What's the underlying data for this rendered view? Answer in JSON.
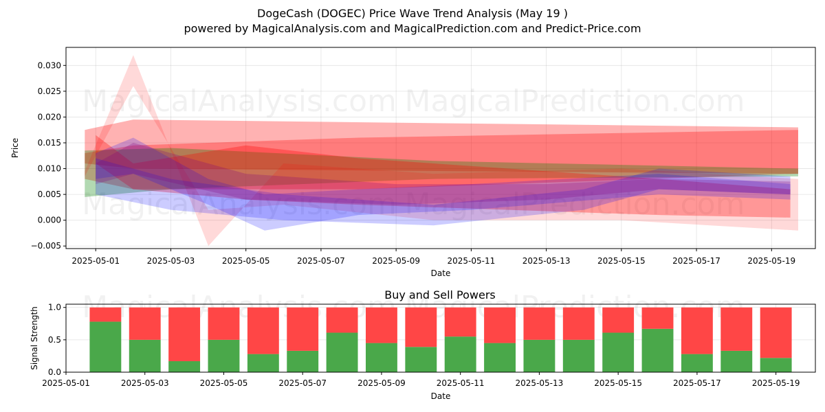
{
  "page": {
    "title": "DogeCash (DOGEC) Price Wave Trend Analysis (May 19 )",
    "subtitle": "powered by MagicalAnalysis.com and MagicalPrediction.com and Predict-Price.com",
    "watermarks": [
      "MagicalAnalysis.com",
      "MagicalPrediction.com"
    ]
  },
  "chart_data": [
    {
      "type": "area",
      "title": "",
      "xlabel": "Date",
      "ylabel": "Price",
      "xlim": [
        "2025-04-30T05:00",
        "2025-05-20T04:00"
      ],
      "ylim": [
        -0.0055,
        0.0335
      ],
      "x_ticks": [
        "2025-05-01",
        "2025-05-03",
        "2025-05-05",
        "2025-05-07",
        "2025-05-09",
        "2025-05-11",
        "2025-05-13",
        "2025-05-15",
        "2025-05-17",
        "2025-05-19"
      ],
      "y_ticks": [
        -0.005,
        0.0,
        0.005,
        0.01,
        0.015,
        0.02,
        0.025,
        0.03
      ],
      "y_tick_labels": [
        "−0.005",
        "0.000",
        "0.005",
        "0.010",
        "0.015",
        "0.020",
        "0.025",
        "0.030"
      ],
      "grid": true,
      "series": [
        {
          "color": "#ff0000",
          "opacity": 0.3,
          "points": [
            [
              "2025-04-30T17:00",
              0.0175,
              0.011
            ],
            [
              "2025-05-02",
              0.0195,
              0.01
            ],
            [
              "2025-05-19T17:00",
              0.018,
              0.009
            ]
          ]
        },
        {
          "color": "#ff0000",
          "opacity": 0.3,
          "points": [
            [
              "2025-04-30T17:00",
              0.013,
              0.008
            ],
            [
              "2025-05-02",
              0.0145,
              0.006
            ],
            [
              "2025-05-08",
              0.016,
              0.006
            ],
            [
              "2025-05-19T17:00",
              0.0175,
              0.009
            ]
          ]
        },
        {
          "color": "#008000",
          "opacity": 0.3,
          "points": [
            [
              "2025-04-30T17:00",
              0.0135,
              0.0045
            ],
            [
              "2025-05-03",
              0.014,
              0.006
            ],
            [
              "2025-05-10",
              0.0115,
              0.008
            ],
            [
              "2025-05-19T17:00",
              0.01,
              0.0085
            ]
          ]
        },
        {
          "color": "#ff0000",
          "opacity": 0.15,
          "points": [
            [
              "2025-04-30T17:00",
              0.0095,
              0.0085
            ],
            [
              "2025-05-02",
              0.032,
              0.026
            ],
            [
              "2025-05-04",
              -0.005,
              0.002
            ],
            [
              "2025-05-06",
              0.011,
              0.003
            ],
            [
              "2025-05-10",
              0.009,
              0.0
            ],
            [
              "2025-05-15",
              0.01,
              0.0
            ],
            [
              "2025-05-19T17:00",
              0.008,
              -0.002
            ]
          ]
        },
        {
          "color": "#ff0000",
          "opacity": 0.3,
          "points": [
            [
              "2025-05-01",
              0.0165,
              0.011
            ],
            [
              "2025-05-02",
              0.011,
              0.006
            ],
            [
              "2025-05-05",
              0.0145,
              0.004
            ],
            [
              "2025-05-08",
              0.012,
              0.003
            ],
            [
              "2025-05-12",
              0.01,
              0.002
            ],
            [
              "2025-05-16",
              0.008,
              0.001
            ],
            [
              "2025-05-19T12:00",
              0.006,
              0.0005
            ]
          ]
        },
        {
          "color": "#0000ff",
          "opacity": 0.2,
          "points": [
            [
              "2025-05-01",
              0.013,
              0.008
            ],
            [
              "2025-05-02",
              0.016,
              0.009
            ],
            [
              "2025-05-04",
              0.008,
              0.003
            ],
            [
              "2025-05-05T12:00",
              0.005,
              -0.002
            ],
            [
              "2025-05-08",
              0.006,
              0.001
            ],
            [
              "2025-05-11",
              0.007,
              0.002
            ],
            [
              "2025-05-16",
              0.009,
              0.005
            ],
            [
              "2025-05-19T12:00",
              0.007,
              0.004
            ]
          ]
        },
        {
          "color": "#0000ff",
          "opacity": 0.2,
          "points": [
            [
              "2025-05-01",
              0.012,
              0.005
            ],
            [
              "2025-05-03",
              0.008,
              0.002
            ],
            [
              "2025-05-06",
              0.005,
              0.0
            ],
            [
              "2025-05-10",
              0.003,
              -0.001
            ],
            [
              "2025-05-14",
              0.006,
              0.002
            ],
            [
              "2025-05-16",
              0.01,
              0.006
            ],
            [
              "2025-05-19T12:00",
              0.0085,
              0.005
            ]
          ]
        },
        {
          "color": "#800080",
          "opacity": 0.25,
          "points": [
            [
              "2025-05-01",
              0.011,
              0.007
            ],
            [
              "2025-05-02",
              0.015,
              0.009
            ],
            [
              "2025-05-05",
              0.009,
              0.004
            ],
            [
              "2025-05-09",
              0.007,
              0.003
            ],
            [
              "2025-05-13",
              0.007,
              0.004
            ],
            [
              "2025-05-16",
              0.008,
              0.006
            ],
            [
              "2025-05-19T12:00",
              0.0075,
              0.005
            ]
          ]
        }
      ]
    },
    {
      "type": "bar",
      "title": "Buy and Sell Powers",
      "xlabel": "Date",
      "ylabel": "Signal Strength",
      "xlim": [
        "2025-05-01",
        "2025-05-20"
      ],
      "ylim": [
        0,
        1.05
      ],
      "x_ticks": [
        "2025-05-01",
        "2025-05-03",
        "2025-05-05",
        "2025-05-07",
        "2025-05-09",
        "2025-05-11",
        "2025-05-13",
        "2025-05-15",
        "2025-05-17",
        "2025-05-19"
      ],
      "y_ticks": [
        0.0,
        0.5,
        1.0
      ],
      "y_tick_labels": [
        "0.0",
        "0.5",
        "1.0"
      ],
      "grid": true,
      "buy_color": "#4aa84a",
      "sell_color": "#ff4646",
      "categories": [
        "2025-05-02",
        "2025-05-03",
        "2025-05-04",
        "2025-05-05",
        "2025-05-06",
        "2025-05-07",
        "2025-05-08",
        "2025-05-09",
        "2025-05-10",
        "2025-05-11",
        "2025-05-12",
        "2025-05-13",
        "2025-05-14",
        "2025-05-15",
        "2025-05-16",
        "2025-05-17",
        "2025-05-18",
        "2025-05-19"
      ],
      "series": [
        {
          "values": [
            0.78,
            0.5,
            0.17,
            0.5,
            0.28,
            0.33,
            0.61,
            0.45,
            0.39,
            0.55,
            0.45,
            0.5,
            0.5,
            0.61,
            0.67,
            0.28,
            0.33,
            0.22
          ]
        },
        {
          "values": [
            0.22,
            0.5,
            0.83,
            0.5,
            0.72,
            0.67,
            0.39,
            0.55,
            0.61,
            0.45,
            0.55,
            0.5,
            0.5,
            0.39,
            0.33,
            0.72,
            0.67,
            0.78
          ]
        }
      ]
    }
  ]
}
